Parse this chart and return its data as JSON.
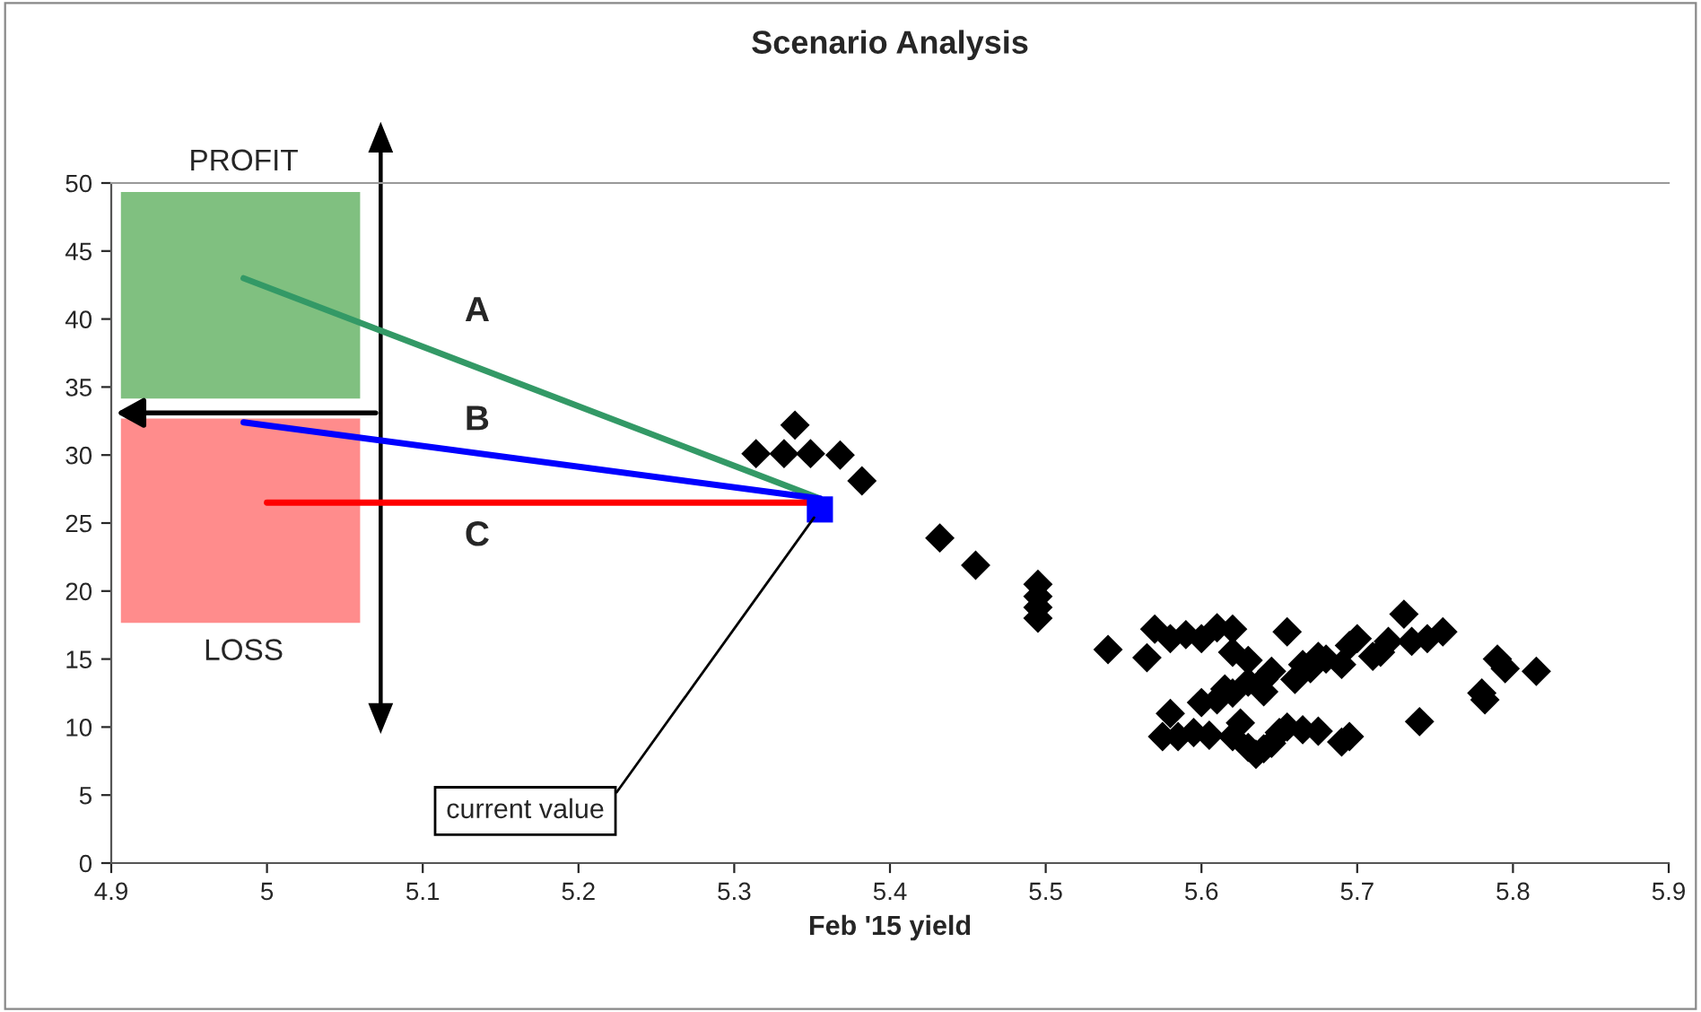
{
  "chart_data": {
    "type": "scatter",
    "title": "Scenario Analysis",
    "xlabel": "Feb '15 yield",
    "xlim": [
      4.9,
      5.9
    ],
    "xticks": [
      4.9,
      5,
      5.1,
      5.2,
      5.3,
      5.4,
      5.5,
      5.6,
      5.7,
      5.8,
      5.9
    ],
    "ylim": [
      0,
      50
    ],
    "yticks": [
      0,
      5,
      10,
      15,
      20,
      25,
      30,
      35,
      40,
      45,
      50
    ],
    "grid": false,
    "legend": false,
    "series": [
      {
        "type": "line",
        "color": "#339966",
        "x": [
          4.985,
          5.355
        ],
        "values": [
          43.0,
          26.8
        ],
        "marker": "none"
      },
      {
        "type": "line",
        "color": "#0000ff",
        "x": [
          4.985,
          5.355
        ],
        "values": [
          32.4,
          26.8
        ],
        "marker": "none"
      },
      {
        "type": "line",
        "color": "#ff0000",
        "x": [
          5.0,
          5.355
        ],
        "values": [
          26.5,
          26.5
        ],
        "marker": "none"
      },
      {
        "color": "#000000",
        "marker": "diamond",
        "x": [
          5.339,
          5.314,
          5.332,
          5.349,
          5.368,
          5.382,
          5.432,
          5.455,
          5.495,
          5.495,
          5.495,
          5.495,
          5.54,
          5.57,
          5.565,
          5.58,
          5.59,
          5.6,
          5.61,
          5.62,
          5.585,
          5.575,
          5.595,
          5.58,
          5.6,
          5.61,
          5.605,
          5.62,
          5.63,
          5.63,
          5.625,
          5.63,
          5.635,
          5.64,
          5.645,
          5.64,
          5.645,
          5.65,
          5.655,
          5.655,
          5.66,
          5.665,
          5.67,
          5.675,
          5.665,
          5.675,
          5.69,
          5.695,
          5.68,
          5.69,
          5.695,
          5.7,
          5.71,
          5.715,
          5.72,
          5.73,
          5.735,
          5.74,
          5.745,
          5.755,
          5.78,
          5.782,
          5.79,
          5.795,
          5.815,
          5.62,
          5.615,
          5.64,
          5.62
        ],
        "values": [
          32.2,
          30.1,
          30.1,
          30.1,
          30.0,
          28.1,
          23.9,
          21.9,
          20.5,
          19.6,
          18.8,
          18.0,
          15.7,
          17.2,
          15.1,
          16.5,
          16.8,
          16.5,
          17.3,
          17.2,
          9.3,
          9.3,
          9.6,
          11.0,
          11.8,
          12.0,
          9.4,
          12.5,
          13.3,
          14.9,
          10.3,
          8.5,
          8.0,
          8.4,
          8.8,
          13.5,
          14.1,
          9.6,
          10.0,
          17.0,
          13.5,
          14.6,
          14.3,
          15.2,
          9.8,
          9.7,
          8.9,
          9.3,
          15.0,
          14.6,
          16.0,
          16.5,
          15.2,
          15.5,
          16.3,
          18.3,
          16.3,
          10.4,
          16.5,
          17.0,
          12.5,
          12.0,
          15.0,
          14.3,
          14.1,
          15.5,
          12.8,
          12.6,
          9.3
        ]
      },
      {
        "type": "scatter",
        "color": "#0000ff",
        "marker": "square",
        "x": [
          5.355
        ],
        "values": [
          26.0
        ]
      }
    ],
    "annotations": [
      "A",
      "B",
      "C",
      "PROFIT",
      "LOSS",
      {
        "text": "current value",
        "x": 5.355,
        "y": 26.0
      }
    ]
  }
}
